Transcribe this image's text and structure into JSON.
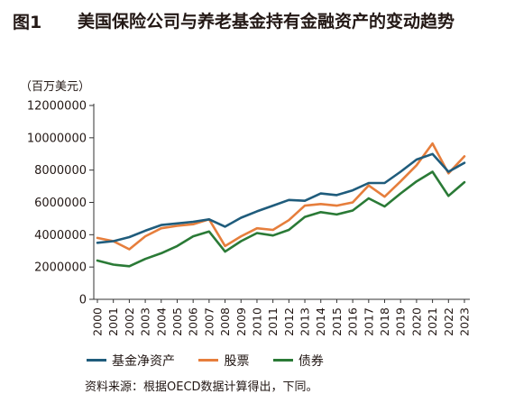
{
  "figure": {
    "number": "图1",
    "title": "美国保险公司与养老基金持有金融资产的变动趋势",
    "unit": "（百万美元）",
    "source": "资料来源：根据OECD数据计算得出，下同。"
  },
  "chart_data": {
    "type": "line",
    "title": "美国保险公司与养老基金持有金融资产的变动趋势",
    "unit": "（百万美元）",
    "ylim": [
      0,
      12000000
    ],
    "yticks": [
      0,
      2000000,
      4000000,
      6000000,
      8000000,
      10000000,
      12000000
    ],
    "ytick_labels": [
      "0",
      "2000000",
      "4000000",
      "6000000",
      "8000000",
      "10000000",
      "12000000"
    ],
    "grid": false,
    "legend_position": "bottom",
    "x": [
      "2000",
      "2001",
      "2002",
      "2003",
      "2004",
      "2005",
      "2006",
      "2007",
      "2008",
      "2009",
      "2010",
      "2011",
      "2012",
      "2013",
      "2014",
      "2015",
      "2016",
      "2017",
      "2018",
      "2019",
      "2020",
      "2021",
      "2022",
      "2023"
    ],
    "series": [
      {
        "name": "基金净资产",
        "color": "#1F5C7C",
        "values": [
          3500000,
          3600000,
          3850000,
          4250000,
          4600000,
          4700000,
          4800000,
          4950000,
          4500000,
          5050000,
          5450000,
          5800000,
          6150000,
          6100000,
          6550000,
          6450000,
          6750000,
          7200000,
          7200000,
          7900000,
          8650000,
          9000000,
          7900000,
          8450000
        ]
      },
      {
        "name": "股票",
        "color": "#E67E3C",
        "values": [
          3800000,
          3600000,
          3100000,
          3900000,
          4400000,
          4550000,
          4650000,
          4950000,
          3300000,
          3900000,
          4400000,
          4300000,
          4900000,
          5800000,
          5900000,
          5800000,
          6000000,
          7050000,
          6350000,
          7300000,
          8300000,
          9650000,
          7800000,
          8850000
        ]
      },
      {
        "name": "债券",
        "color": "#2A7A36",
        "values": [
          2400000,
          2150000,
          2050000,
          2500000,
          2850000,
          3300000,
          3900000,
          4200000,
          2950000,
          3600000,
          4100000,
          3950000,
          4300000,
          5100000,
          5400000,
          5250000,
          5500000,
          6250000,
          5750000,
          6550000,
          7300000,
          7900000,
          6400000,
          7250000
        ]
      }
    ]
  }
}
